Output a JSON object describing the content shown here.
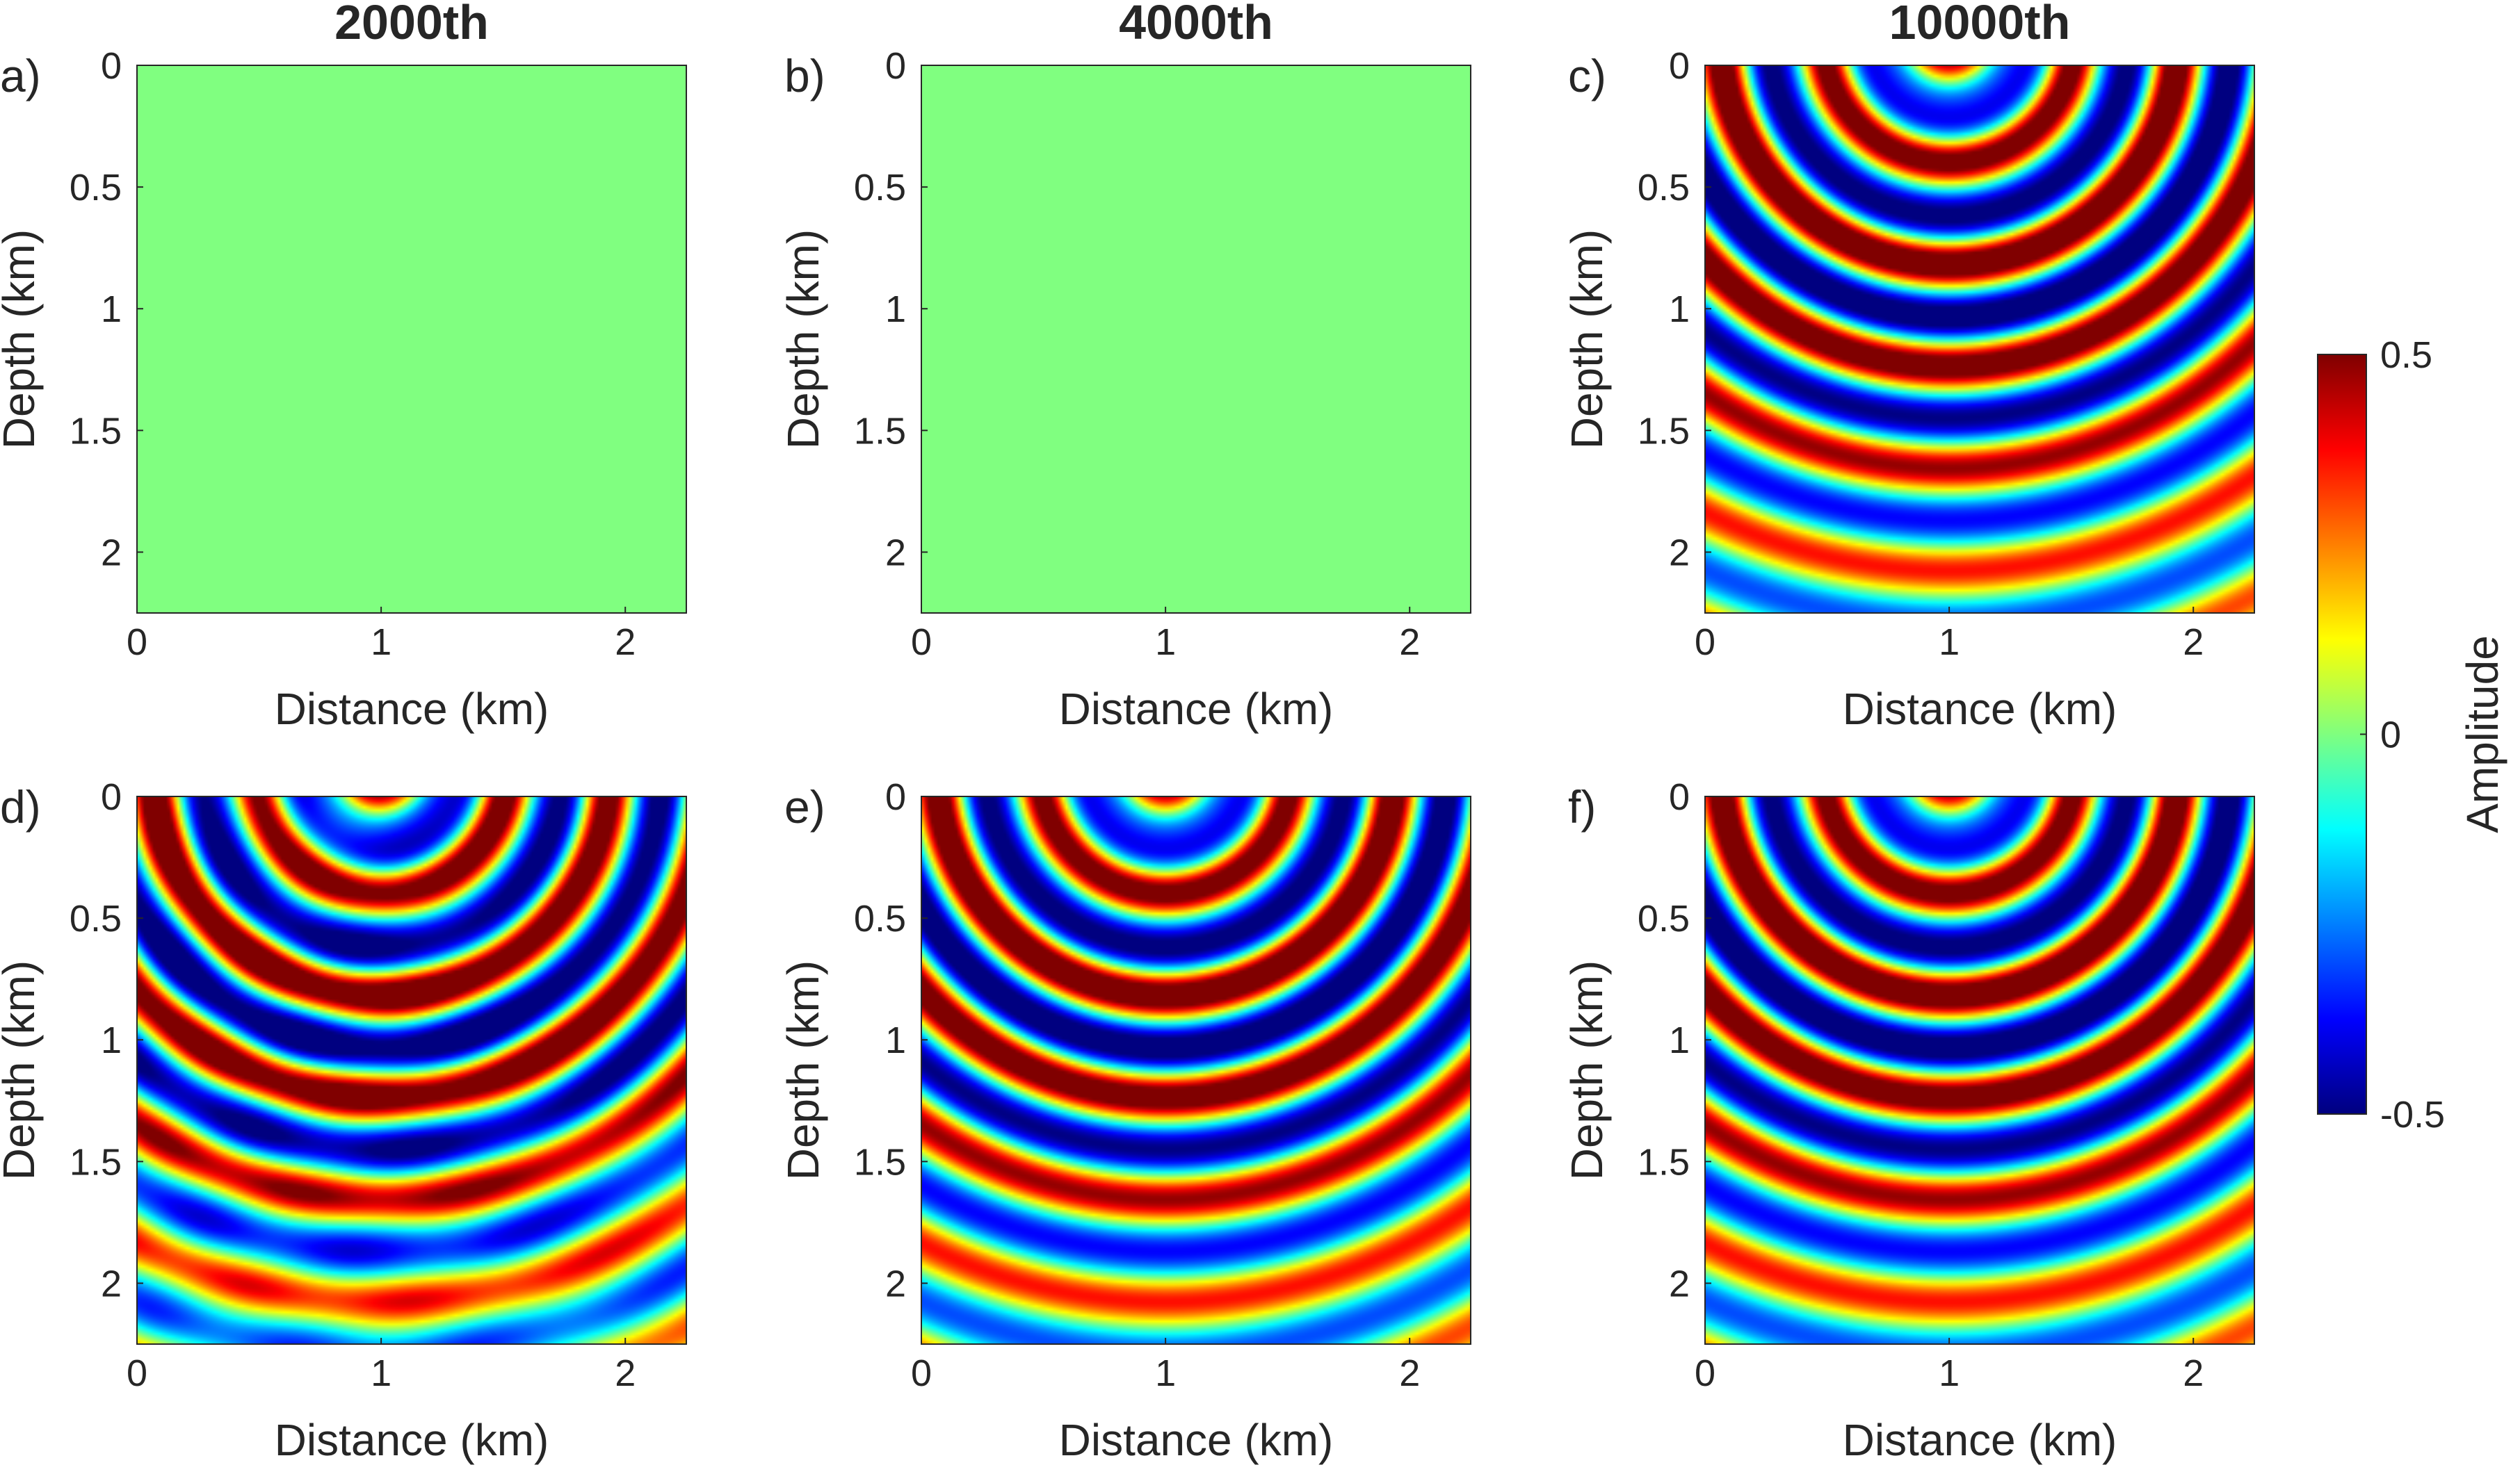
{
  "chart_data": [
    {
      "type": "heatmap",
      "panel_label": "a)",
      "title": "2000th",
      "xlabel": "Distance (km)",
      "ylabel": "Depth (km)",
      "xlim": [
        0,
        2.25
      ],
      "ylim": [
        0,
        2.25
      ],
      "xticks": [
        0,
        1,
        2
      ],
      "xtick_labels": [
        "0",
        "1",
        "2"
      ],
      "yticks": [
        0,
        0.5,
        1,
        1.5,
        2
      ],
      "ytick_labels": [
        "0",
        "0.5",
        "1",
        "1.5",
        "2"
      ],
      "content": "uniform field",
      "amplitude_scale": 0.0
    },
    {
      "type": "heatmap",
      "panel_label": "b)",
      "title": "4000th",
      "xlabel": "Distance (km)",
      "ylabel": "Depth (km)",
      "xlim": [
        0,
        2.25
      ],
      "ylim": [
        0,
        2.25
      ],
      "xticks": [
        0,
        1,
        2
      ],
      "xtick_labels": [
        "0",
        "1",
        "2"
      ],
      "yticks": [
        0,
        0.5,
        1,
        1.5,
        2
      ],
      "ytick_labels": [
        "0",
        "0.5",
        "1",
        "1.5",
        "2"
      ],
      "content": "uniform field",
      "amplitude_scale": 0.0
    },
    {
      "type": "heatmap",
      "panel_label": "c)",
      "title": "10000th",
      "xlabel": "Distance (km)",
      "ylabel": "Depth (km)",
      "xlim": [
        0,
        2.25
      ],
      "ylim": [
        0,
        2.25
      ],
      "xticks": [
        0,
        1,
        2
      ],
      "xtick_labels": [
        "0",
        "1",
        "2"
      ],
      "yticks": [
        0,
        0.5,
        1,
        1.5,
        2
      ],
      "ytick_labels": [
        "0",
        "0.5",
        "1",
        "1.5",
        "2"
      ],
      "content": "concentric wavefronts centred near x=1 km",
      "amplitude_scale": 1.0
    },
    {
      "type": "heatmap",
      "panel_label": "d)",
      "title": "",
      "xlabel": "Distance (km)",
      "ylabel": "Depth (km)",
      "xlim": [
        0,
        2.25
      ],
      "ylim": [
        0,
        2.25
      ],
      "xticks": [
        0,
        1,
        2
      ],
      "xtick_labels": [
        "0",
        "1",
        "2"
      ],
      "yticks": [
        0,
        0.5,
        1,
        1.5,
        2
      ],
      "ytick_labels": [
        "0",
        "0.5",
        "1",
        "1.5",
        "2"
      ],
      "content": "concentric wavefronts centred near x=1 km",
      "amplitude_scale": 1.0
    },
    {
      "type": "heatmap",
      "panel_label": "e)",
      "title": "",
      "xlabel": "Distance (km)",
      "ylabel": "Depth (km)",
      "xlim": [
        0,
        2.25
      ],
      "ylim": [
        0,
        2.25
      ],
      "xticks": [
        0,
        1,
        2
      ],
      "xtick_labels": [
        "0",
        "1",
        "2"
      ],
      "yticks": [
        0,
        0.5,
        1,
        1.5,
        2
      ],
      "ytick_labels": [
        "0",
        "0.5",
        "1",
        "1.5",
        "2"
      ],
      "content": "concentric wavefronts centred near x=1 km",
      "amplitude_scale": 1.0
    },
    {
      "type": "heatmap",
      "panel_label": "f)",
      "title": "",
      "xlabel": "Distance (km)",
      "ylabel": "Depth (km)",
      "xlim": [
        0,
        2.25
      ],
      "ylim": [
        0,
        2.25
      ],
      "xticks": [
        0,
        1,
        2
      ],
      "xtick_labels": [
        "0",
        "1",
        "2"
      ],
      "yticks": [
        0,
        0.5,
        1,
        1.5,
        2
      ],
      "ytick_labels": [
        "0",
        "0.5",
        "1",
        "1.5",
        "2"
      ],
      "content": "concentric wavefronts centred near x=1 km",
      "amplitude_scale": 1.0
    }
  ],
  "colorbar": {
    "label": "Amplitude",
    "range": [
      -0.5,
      0.5
    ],
    "ticks": [
      0.5,
      0,
      -0.5
    ],
    "tick_labels": [
      "0.5",
      "0",
      "-0.5"
    ],
    "colormap": "jet",
    "colors": [
      "#00007f",
      "#0000ff",
      "#007fff",
      "#00ffff",
      "#7fff7f",
      "#ffff00",
      "#ff7f00",
      "#ff0000",
      "#7f0000"
    ]
  }
}
